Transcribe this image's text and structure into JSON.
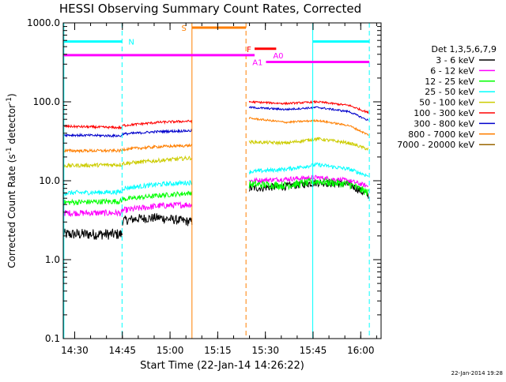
{
  "chart_data": {
    "type": "line",
    "title": "HESSI Observing Summary Count Rates, Corrected",
    "xlabel": "Start Time (22-Jan-14 14:26:22)",
    "ylabel": "Corrected Count Rate (s⁻¹ detector⁻¹)",
    "ylabel_parts": {
      "main": "Corrected Count Rate (s",
      "sup1": "-1",
      "mid": " detector",
      "sup2": "-1",
      "end": ")"
    },
    "yscale": "log",
    "ylim": [
      0.1,
      1000
    ],
    "xlim_minutes": [
      0,
      100
    ],
    "y_ticks": [
      "0.1",
      "1.0",
      "10.0",
      "100.0",
      "1000.0"
    ],
    "x_ticks": [
      {
        "label": "14:30",
        "t": 3.6
      },
      {
        "label": "14:45",
        "t": 18.6
      },
      {
        "label": "15:00",
        "t": 33.6
      },
      {
        "label": "15:15",
        "t": 48.6
      },
      {
        "label": "15:30",
        "t": 63.6
      },
      {
        "label": "15:45",
        "t": 78.6
      },
      {
        "label": "16:00",
        "t": 93.6
      }
    ],
    "legend": {
      "placement": "right",
      "title": "Det 1,3,5,6,7,9",
      "entries": [
        {
          "label": "3 - 6 keV",
          "color": "#000000"
        },
        {
          "label": "6 - 12 keV",
          "color": "#ff00ff"
        },
        {
          "label": "12 - 25 keV",
          "color": "#00ff00"
        },
        {
          "label": "25 - 50 keV",
          "color": "#00ffff"
        },
        {
          "label": "50 - 100 keV",
          "color": "#cccc00"
        },
        {
          "label": "100 - 300 keV",
          "color": "#ff0000"
        },
        {
          "label": "300 - 800 keV",
          "color": "#0000cc"
        },
        {
          "label": "800 - 7000 keV",
          "color": "#ff7f00"
        },
        {
          "label": "7000 - 20000 keV",
          "color": "#996600"
        }
      ]
    },
    "series": [
      {
        "name": "3 - 6 keV",
        "color": "#000000",
        "segments": [
          {
            "x": [
              0,
              18.5
            ],
            "y": [
              2.1,
              2.1
            ],
            "noise": 0.07
          },
          {
            "x": [
              18.5,
              23,
              30,
              40.5
            ],
            "y": [
              3.1,
              3.3,
              3.4,
              3.0
            ],
            "noise": 0.06
          },
          {
            "x": [
              58.5,
              70,
              80,
              90,
              96
            ],
            "y": [
              8.0,
              8.5,
              9.5,
              9.0,
              6.5
            ],
            "noise": 0.05
          }
        ]
      },
      {
        "name": "6 - 12 keV",
        "color": "#ff00ff",
        "segments": [
          {
            "x": [
              0,
              18.5
            ],
            "y": [
              3.9,
              3.9
            ],
            "noise": 0.04
          },
          {
            "x": [
              18.5,
              30,
              40.5
            ],
            "y": [
              4.2,
              4.8,
              5.0
            ],
            "noise": 0.04
          },
          {
            "x": [
              58.5,
              70,
              80,
              90,
              96
            ],
            "y": [
              10.0,
              10.5,
              11.0,
              10.0,
              8.5
            ],
            "noise": 0.03
          }
        ]
      },
      {
        "name": "12 - 25 keV",
        "color": "#00ff00",
        "segments": [
          {
            "x": [
              0,
              18.5
            ],
            "y": [
              5.3,
              5.5
            ],
            "noise": 0.035
          },
          {
            "x": [
              18.5,
              30,
              40.5
            ],
            "y": [
              5.8,
              6.5,
              7.0
            ],
            "noise": 0.03
          },
          {
            "x": [
              58.5,
              70,
              80,
              90,
              96
            ],
            "y": [
              9.0,
              8.7,
              9.8,
              9.0,
              7.0
            ],
            "noise": 0.05
          }
        ]
      },
      {
        "name": "25 - 50 keV",
        "color": "#00ffff",
        "segments": [
          {
            "x": [
              0,
              18.5
            ],
            "y": [
              7.0,
              7.2
            ],
            "noise": 0.03
          },
          {
            "x": [
              18.5,
              30,
              40.5
            ],
            "y": [
              8.0,
              9.0,
              9.5
            ],
            "noise": 0.03
          },
          {
            "x": [
              58.5,
              70,
              80,
              90,
              96
            ],
            "y": [
              13.0,
              14.0,
              16.0,
              14.0,
              11.5
            ],
            "noise": 0.025
          }
        ]
      },
      {
        "name": "50 - 100 keV",
        "color": "#cccc00",
        "segments": [
          {
            "x": [
              0,
              18.5
            ],
            "y": [
              15.5,
              16.0
            ],
            "noise": 0.025
          },
          {
            "x": [
              18.5,
              30,
              40.5
            ],
            "y": [
              16.5,
              18.0,
              19.5
            ],
            "noise": 0.025
          },
          {
            "x": [
              58.5,
              70,
              80,
              90,
              96
            ],
            "y": [
              31.0,
              30.0,
              34.0,
              30.0,
              25.0
            ],
            "noise": 0.02
          }
        ]
      },
      {
        "name": "100 - 300 keV",
        "color": "#ff0000",
        "segments": [
          {
            "x": [
              0,
              18.5
            ],
            "y": [
              49.0,
              47.0
            ],
            "noise": 0.015
          },
          {
            "x": [
              18.5,
              30,
              40.5
            ],
            "y": [
              50.0,
              55.0,
              57.0
            ],
            "noise": 0.015
          },
          {
            "x": [
              58.5,
              70,
              80,
              90,
              96
            ],
            "y": [
              100.0,
              95.0,
              100.0,
              90.0,
              73.0
            ],
            "noise": 0.012
          }
        ]
      },
      {
        "name": "300 - 800 keV",
        "color": "#0000cc",
        "segments": [
          {
            "x": [
              0,
              18.5
            ],
            "y": [
              38.0,
              37.0
            ],
            "noise": 0.015
          },
          {
            "x": [
              18.5,
              30,
              40.5
            ],
            "y": [
              39.0,
              42.0,
              43.0
            ],
            "noise": 0.015
          },
          {
            "x": [
              58.5,
              70,
              80,
              90,
              96
            ],
            "y": [
              85.0,
              80.0,
              85.0,
              75.0,
              58.0
            ],
            "noise": 0.012
          }
        ]
      },
      {
        "name": "800 - 7000 keV",
        "color": "#ff7f00",
        "segments": [
          {
            "x": [
              0,
              18.5
            ],
            "y": [
              24.0,
              24.0
            ],
            "noise": 0.018
          },
          {
            "x": [
              18.5,
              30,
              40.5
            ],
            "y": [
              25.0,
              27.0,
              28.0
            ],
            "noise": 0.018
          },
          {
            "x": [
              58.5,
              70,
              80,
              90,
              96
            ],
            "y": [
              62.0,
              55.0,
              58.0,
              50.0,
              38.0
            ],
            "noise": 0.012
          }
        ]
      }
    ],
    "vertical_lines": [
      {
        "t": 0.2,
        "color": "#00ffff",
        "style": "solid"
      },
      {
        "t": 18.5,
        "color": "#00ffff",
        "style": "dashed"
      },
      {
        "t": 40.5,
        "color": "#ff7f00",
        "style": "solid"
      },
      {
        "t": 57.5,
        "color": "#ff7f00",
        "style": "dashed"
      },
      {
        "t": 78.5,
        "color": "#00ffff",
        "style": "solid"
      },
      {
        "t": 96.3,
        "color": "#00ffff",
        "style": "dashed"
      }
    ],
    "flag_bars": [
      {
        "label": "N",
        "color": "#00ffff",
        "t_start": 0.2,
        "t_end": 18.5,
        "y": 580,
        "label_t": 20.5,
        "label_y": 580
      },
      {
        "label": "",
        "color": "#00ffff",
        "t_start": 78.5,
        "t_end": 96.3,
        "y": 580,
        "label_t": null,
        "label_y": null
      },
      {
        "label": "S",
        "color": "#ff7f00",
        "t_start": 40.5,
        "t_end": 57.5,
        "y": 870,
        "label_t": 37.2,
        "label_y": 870
      },
      {
        "label": "F",
        "color": "#ff0000",
        "t_start": 60.2,
        "t_end": 67.0,
        "y": 470,
        "label_t": 57.7,
        "label_y": 470
      },
      {
        "label": "A0",
        "color": "#ff00ff",
        "t_start": 0.2,
        "t_end": 60.2,
        "y": 390,
        "label_t": 66.0,
        "label_y": 390
      },
      {
        "label": "A1",
        "color": "#ff00ff",
        "t_start": 63.8,
        "t_end": 96.3,
        "y": 320,
        "label_t": 59.5,
        "label_y": 320
      }
    ],
    "timestamp": "22-Jan-2014 19:28"
  }
}
